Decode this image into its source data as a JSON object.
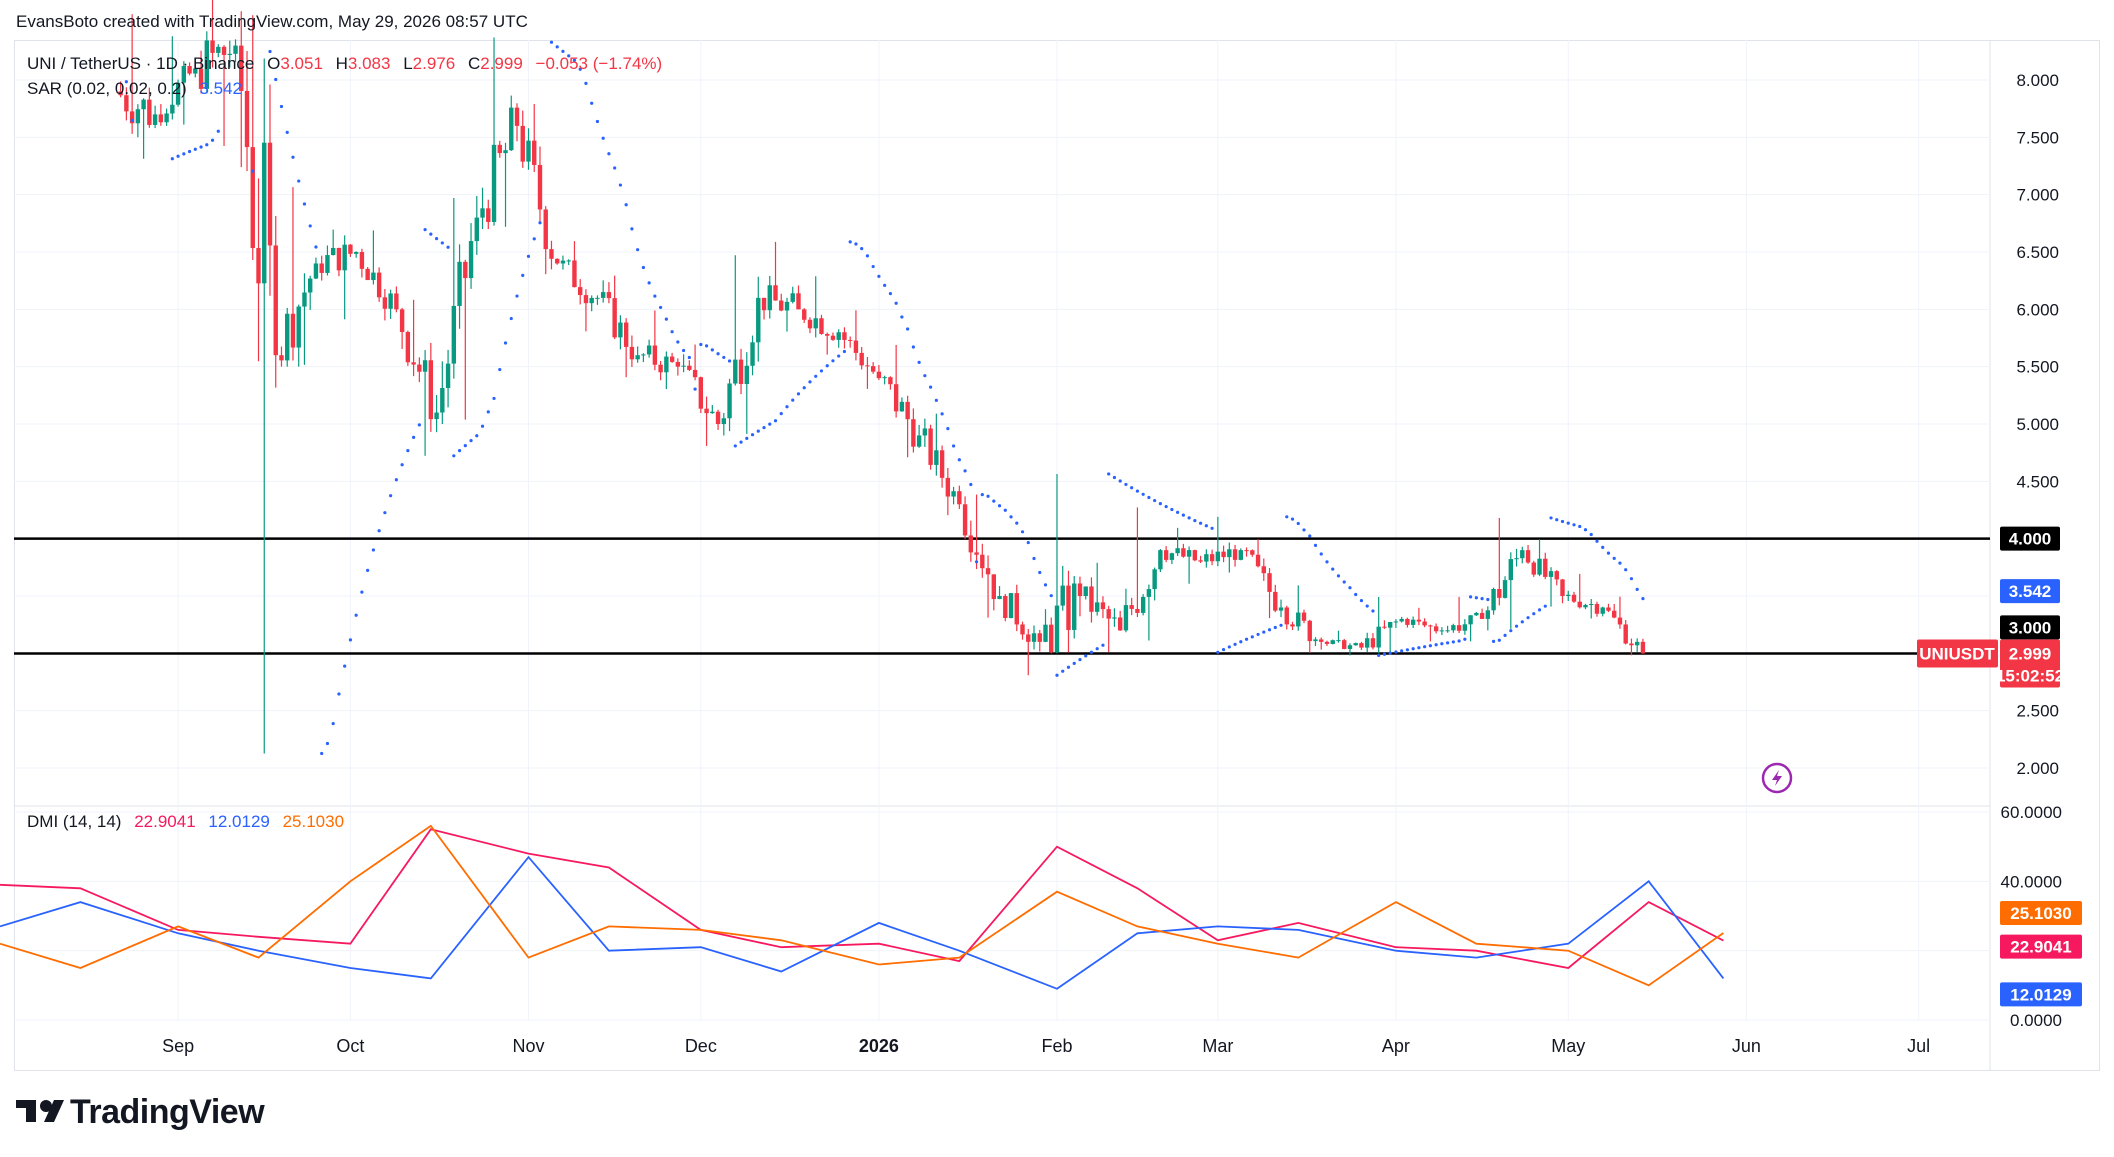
{
  "header": {
    "attribution": "EvansBoto created with TradingView.com, May 29, 2026 08:57 UTC",
    "symbol": "UNI / TetherUS · 1D · Binance",
    "o_label": "O",
    "o_value": "3.051",
    "h_label": "H",
    "h_value": "3.083",
    "l_label": "L",
    "l_value": "2.976",
    "c_label": "C",
    "c_value": "2.999",
    "change": "−0.053",
    "change_pct": "(−1.74%)",
    "sar_label": "SAR (0.02, 0.02, 0.2)",
    "sar_value": "3.542",
    "dmi_label": "DMI (14, 14)",
    "dmi_adx": "22.9041",
    "dmi_plus": "12.0129",
    "dmi_minus": "25.1030"
  },
  "price_axis": [
    "8.000",
    "7.500",
    "7.000",
    "6.500",
    "6.000",
    "5.500",
    "5.000",
    "4.500",
    "2.500",
    "2.000"
  ],
  "dmi_axis": [
    "60.0000",
    "40.0000",
    "0.0000"
  ],
  "time_axis": [
    "Sep",
    "Oct",
    "Nov",
    "Dec",
    "2026",
    "Feb",
    "Mar",
    "Apr",
    "May",
    "Jun",
    "Jul"
  ],
  "badges": {
    "level_4": "4.000",
    "sar": "3.542",
    "level_3": "3.000",
    "symbol": "UNIUSDT",
    "last_price": "2.999",
    "countdown": "15:02:52",
    "dmi_minus": "25.1030",
    "dmi_adx": "22.9041",
    "dmi_plus": "12.0129"
  },
  "brand": "TradingView",
  "colors": {
    "up": "#089981",
    "down": "#f23645",
    "sar": "#2962ff",
    "adx": "#f7195f",
    "plus_di": "#2962ff",
    "minus_di": "#ff6d00",
    "text": "#131722",
    "grid": "#f0f3fa"
  },
  "chart_data": [
    {
      "type": "candlestick",
      "title": "UNI / TetherUS · 1D · Binance",
      "x_range": [
        "2025-08-01",
        "2026-07-31"
      ],
      "ylim": [
        1.9,
        8.3
      ],
      "horizontal_levels": [
        4.0,
        2.999
      ],
      "last_close": 2.999,
      "sar_last": 3.542,
      "ohlc_weekly_approx": [
        {
          "t": "2025-08-22",
          "o": 7.9,
          "h": 8.6,
          "l": 7.3,
          "c": 7.7
        },
        {
          "t": "2025-08-29",
          "o": 7.7,
          "h": 8.4,
          "l": 7.6,
          "c": 8.1
        },
        {
          "t": "2025-09-05",
          "o": 8.1,
          "h": 8.8,
          "l": 7.4,
          "c": 8.3
        },
        {
          "t": "2025-09-12",
          "o": 8.3,
          "h": 8.6,
          "l": 2.0,
          "c": 5.6
        },
        {
          "t": "2025-09-19",
          "o": 5.6,
          "h": 7.1,
          "l": 5.5,
          "c": 6.4
        },
        {
          "t": "2025-09-26",
          "o": 6.4,
          "h": 6.7,
          "l": 5.9,
          "c": 6.5
        },
        {
          "t": "2025-10-03",
          "o": 6.5,
          "h": 6.7,
          "l": 5.9,
          "c": 6.0
        },
        {
          "t": "2025-10-10",
          "o": 6.0,
          "h": 6.1,
          "l": 4.7,
          "c": 5.1
        },
        {
          "t": "2025-10-17",
          "o": 5.1,
          "h": 7.0,
          "l": 5.0,
          "c": 6.8
        },
        {
          "t": "2025-10-24",
          "o": 6.8,
          "h": 8.4,
          "l": 6.7,
          "c": 7.6
        },
        {
          "t": "2025-10-31",
          "o": 7.6,
          "h": 7.8,
          "l": 6.3,
          "c": 6.4
        },
        {
          "t": "2025-11-07",
          "o": 6.4,
          "h": 6.6,
          "l": 5.8,
          "c": 6.1
        },
        {
          "t": "2025-11-14",
          "o": 6.1,
          "h": 6.3,
          "l": 5.4,
          "c": 5.6
        },
        {
          "t": "2025-11-21",
          "o": 5.6,
          "h": 6.0,
          "l": 5.3,
          "c": 5.5
        },
        {
          "t": "2025-11-28",
          "o": 5.5,
          "h": 5.7,
          "l": 4.8,
          "c": 5.0
        },
        {
          "t": "2025-12-05",
          "o": 5.0,
          "h": 6.5,
          "l": 4.9,
          "c": 6.1
        },
        {
          "t": "2025-12-12",
          "o": 6.1,
          "h": 6.6,
          "l": 5.8,
          "c": 6.0
        },
        {
          "t": "2025-12-19",
          "o": 6.0,
          "h": 6.3,
          "l": 5.6,
          "c": 5.8
        },
        {
          "t": "2025-12-26",
          "o": 5.8,
          "h": 6.0,
          "l": 5.3,
          "c": 5.4
        },
        {
          "t": "2026-01-02",
          "o": 5.4,
          "h": 5.7,
          "l": 4.7,
          "c": 4.9
        },
        {
          "t": "2026-01-09",
          "o": 4.9,
          "h": 5.1,
          "l": 4.2,
          "c": 4.3
        },
        {
          "t": "2026-01-16",
          "o": 4.3,
          "h": 4.4,
          "l": 3.3,
          "c": 3.5
        },
        {
          "t": "2026-01-23",
          "o": 3.5,
          "h": 3.6,
          "l": 2.8,
          "c": 3.1
        },
        {
          "t": "2026-01-30",
          "o": 3.1,
          "h": 4.6,
          "l": 3.0,
          "c": 3.5
        },
        {
          "t": "2026-02-06",
          "o": 3.5,
          "h": 3.8,
          "l": 3.0,
          "c": 3.2
        },
        {
          "t": "2026-02-13",
          "o": 3.2,
          "h": 4.3,
          "l": 3.1,
          "c": 3.9
        },
        {
          "t": "2026-02-20",
          "o": 3.9,
          "h": 4.1,
          "l": 3.6,
          "c": 3.8
        },
        {
          "t": "2026-02-27",
          "o": 3.8,
          "h": 4.2,
          "l": 3.7,
          "c": 3.9
        },
        {
          "t": "2026-03-06",
          "o": 3.9,
          "h": 4.0,
          "l": 3.3,
          "c": 3.4
        },
        {
          "t": "2026-03-13",
          "o": 3.4,
          "h": 3.6,
          "l": 3.0,
          "c": 3.1
        },
        {
          "t": "2026-03-20",
          "o": 3.1,
          "h": 3.2,
          "l": 2.98,
          "c": 3.05
        },
        {
          "t": "2026-03-27",
          "o": 3.05,
          "h": 3.5,
          "l": 3.0,
          "c": 3.3
        },
        {
          "t": "2026-04-03",
          "o": 3.3,
          "h": 3.4,
          "l": 3.1,
          "c": 3.2
        },
        {
          "t": "2026-04-10",
          "o": 3.2,
          "h": 3.5,
          "l": 3.1,
          "c": 3.3
        },
        {
          "t": "2026-04-17",
          "o": 3.3,
          "h": 4.2,
          "l": 3.2,
          "c": 3.9
        },
        {
          "t": "2026-04-24",
          "o": 3.9,
          "h": 4.0,
          "l": 3.4,
          "c": 3.5
        },
        {
          "t": "2026-05-01",
          "o": 3.5,
          "h": 3.7,
          "l": 3.3,
          "c": 3.4
        },
        {
          "t": "2026-05-08",
          "o": 3.4,
          "h": 3.5,
          "l": 2.98,
          "c": 3.0
        }
      ]
    },
    {
      "type": "line",
      "title": "DMI (14, 14)",
      "ylim": [
        0,
        60
      ],
      "x": [
        "2025-08-01",
        "2025-08-15",
        "2025-09-01",
        "2025-09-15",
        "2025-10-01",
        "2025-10-15",
        "2025-11-01",
        "2025-11-15",
        "2025-12-01",
        "2025-12-15",
        "2026-01-01",
        "2026-01-15",
        "2026-02-01",
        "2026-02-15",
        "2026-03-01",
        "2026-03-15",
        "2026-04-01",
        "2026-04-15",
        "2026-05-01",
        "2026-05-15",
        "2026-05-28"
      ],
      "series": [
        {
          "name": "ADX",
          "values": [
            39,
            38,
            26,
            24,
            22,
            55,
            48,
            44,
            26,
            21,
            22,
            17,
            50,
            38,
            23,
            28,
            21,
            20,
            15,
            34,
            22.9
          ]
        },
        {
          "name": "+DI",
          "values": [
            27,
            34,
            25,
            20,
            15,
            12,
            47,
            20,
            21,
            14,
            28,
            20,
            9,
            25,
            27,
            26,
            20,
            18,
            22,
            40,
            12.0
          ]
        },
        {
          "name": "-DI",
          "values": [
            22,
            15,
            27,
            18,
            40,
            56,
            18,
            27,
            26,
            23,
            16,
            18,
            37,
            27,
            22,
            18,
            34,
            22,
            20,
            10,
            25.1
          ]
        }
      ]
    }
  ]
}
